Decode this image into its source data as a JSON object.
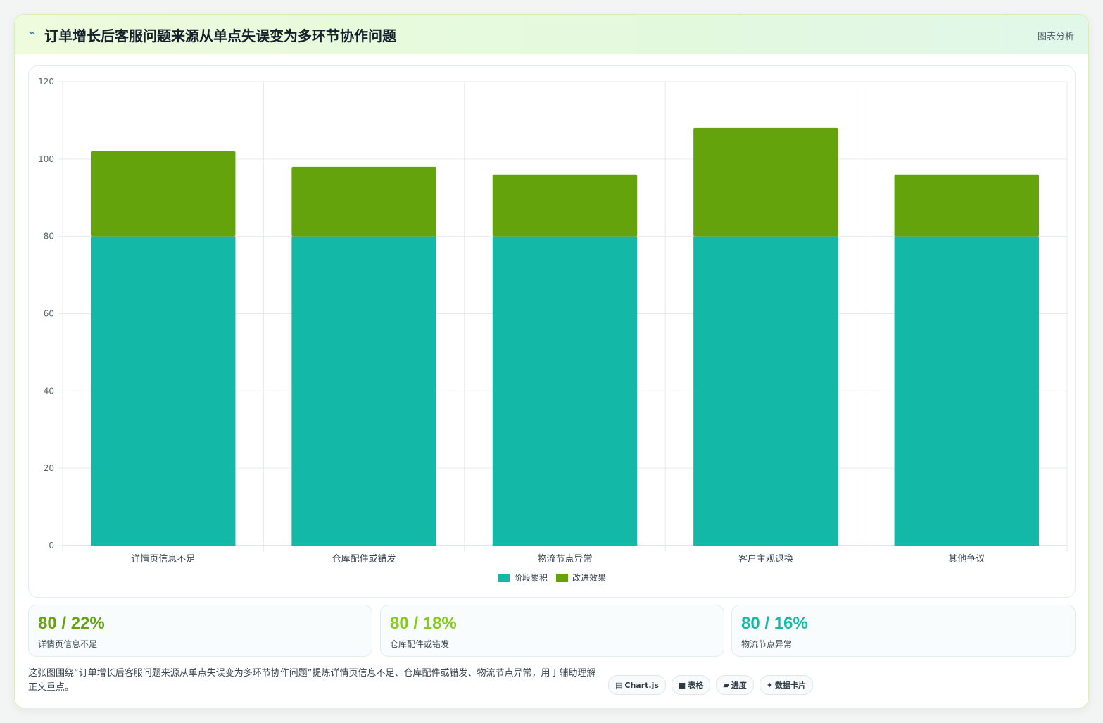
{
  "header": {
    "icon": "trend-icon",
    "title": "订单增长后客服问题来源从单点失误变为多环节协作问题",
    "tag": "图表分析"
  },
  "chart_data": {
    "type": "bar",
    "stacked": true,
    "categories": [
      "详情页信息不足",
      "仓库配件或错发",
      "物流节点异常",
      "客户主观退换",
      "其他争议"
    ],
    "series": [
      {
        "name": "阶段累积",
        "color": "#14b8a6",
        "values": [
          80,
          80,
          80,
          80,
          80
        ]
      },
      {
        "name": "改进效果",
        "color": "#65a30d",
        "values": [
          22,
          18,
          16,
          28,
          16
        ]
      }
    ],
    "ylim": [
      0,
      120
    ],
    "yticks": [
      0,
      20,
      40,
      60,
      80,
      100,
      120
    ],
    "grid": true,
    "legend_position": "bottom"
  },
  "stats": [
    {
      "value": "80 / 22%",
      "label": "详情页信息不足",
      "color": "#65a30d"
    },
    {
      "value": "80 / 18%",
      "label": "仓库配件或错发",
      "color": "#84cc16"
    },
    {
      "value": "80 / 16%",
      "label": "物流节点异常",
      "color": "#14b8a6"
    }
  ],
  "caption": "这张图围绕“订单增长后客服问题来源从单点失误变为多环节协作问题”提炼详情页信息不足、仓库配件或错发、物流节点异常，用于辅助理解正文重点。",
  "tags": [
    {
      "icon": "chart-icon",
      "glyph": "▤",
      "label": "Chart.js"
    },
    {
      "icon": "table-icon",
      "glyph": "■",
      "label": "表格"
    },
    {
      "icon": "progress-icon",
      "glyph": "▰",
      "label": "进度"
    },
    {
      "icon": "sparkle-icon",
      "glyph": "✦",
      "label": "数据卡片"
    }
  ]
}
